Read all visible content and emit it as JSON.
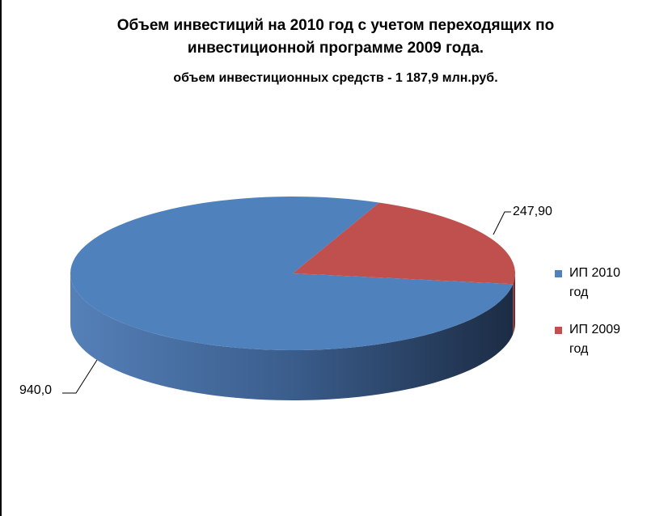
{
  "chart_data": {
    "type": "pie",
    "title": "Объем инвестиций на 2010 год с учетом переходящих по инвестиционной программе 2009 года.",
    "subtitle": "объем инвестиционных средств - 1 187,9 млн.руб.",
    "categories": [
      "ИП 2010 год",
      "ИП 2009 год"
    ],
    "values": [
      940.0,
      247.9
    ],
    "value_labels": [
      "940,0",
      "247,90"
    ],
    "colors": [
      "#4f81bd",
      "#c0504d"
    ],
    "legend": "right"
  }
}
